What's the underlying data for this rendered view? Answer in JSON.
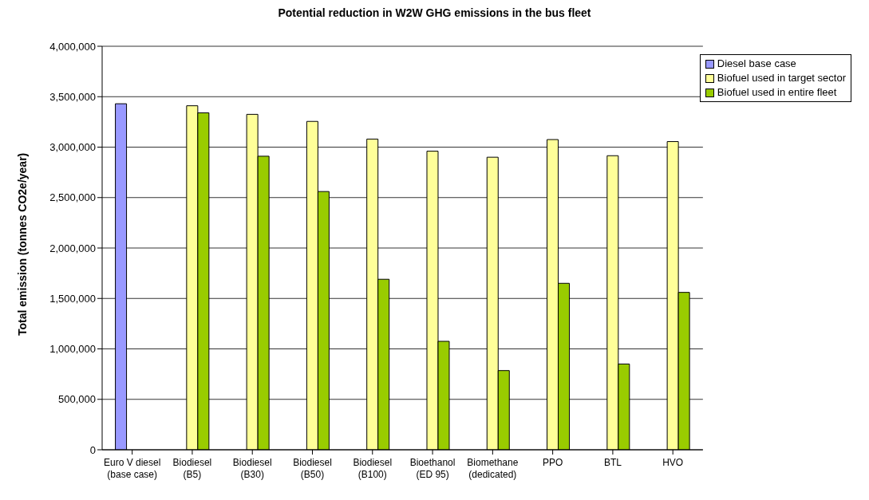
{
  "chart_data": {
    "type": "bar",
    "title": "Potential reduction in W2W GHG emissions in the bus fleet",
    "ylabel": "Total emission (tonnes CO2e/year)",
    "categories": [
      "Euro V diesel\n(base case)",
      "Biodiesel\n(B5)",
      "Biodiesel\n(B30)",
      "Biodiesel\n(B50)",
      "Biodiesel\n(B100)",
      "Bioethanol\n(ED 95)",
      "Biomethane\n(dedicated)",
      "PPO",
      "BTL",
      "HVO"
    ],
    "series": [
      {
        "name": "Diesel base case",
        "color": "#9999ff",
        "values": [
          3430000,
          null,
          null,
          null,
          null,
          null,
          null,
          null,
          null,
          null
        ]
      },
      {
        "name": "Biofuel used in target sector",
        "color": "#ffff99",
        "values": [
          null,
          3410000,
          3325000,
          3255000,
          3080000,
          2960000,
          2900000,
          3075000,
          2915000,
          3055000
        ]
      },
      {
        "name": "Biofuel used in entire fleet",
        "color": "#99cc00",
        "values": [
          null,
          3340000,
          2910000,
          2560000,
          1690000,
          1075000,
          785000,
          1650000,
          850000,
          1560000
        ]
      }
    ],
    "ylim": [
      0,
      4000000
    ],
    "yticks": [
      0,
      {
        "value": 500000,
        "label": "500,000"
      },
      {
        "value": 1000000,
        "label": "1,000,000"
      },
      {
        "value": 1500000,
        "label": "1,500,000"
      },
      {
        "value": 2000000,
        "label": "2,000,000"
      },
      {
        "value": 2500000,
        "label": "2,500,000"
      },
      {
        "value": 3000000,
        "label": "3,000,000"
      },
      {
        "value": 3500000,
        "label": "3,500,000"
      },
      {
        "value": 4000000,
        "label": "4,000,000"
      }
    ],
    "grid": "y",
    "legend": "top right"
  }
}
